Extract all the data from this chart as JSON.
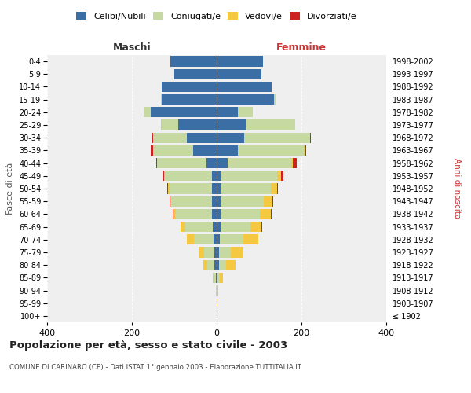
{
  "age_groups": [
    "100+",
    "95-99",
    "90-94",
    "85-89",
    "80-84",
    "75-79",
    "70-74",
    "65-69",
    "60-64",
    "55-59",
    "50-54",
    "45-49",
    "40-44",
    "35-39",
    "30-34",
    "25-29",
    "20-24",
    "15-19",
    "10-14",
    "5-9",
    "0-4"
  ],
  "birth_years": [
    "≤ 1902",
    "1903-1907",
    "1908-1912",
    "1913-1917",
    "1918-1922",
    "1923-1927",
    "1928-1932",
    "1933-1937",
    "1938-1942",
    "1943-1947",
    "1948-1952",
    "1953-1957",
    "1958-1962",
    "1963-1967",
    "1968-1972",
    "1973-1977",
    "1978-1982",
    "1983-1987",
    "1988-1992",
    "1993-1997",
    "1998-2002"
  ],
  "maschi": {
    "celibi": [
      0,
      0,
      0,
      2,
      5,
      5,
      8,
      10,
      12,
      12,
      12,
      12,
      25,
      55,
      70,
      90,
      155,
      130,
      130,
      100,
      110
    ],
    "coniugati": [
      0,
      0,
      1,
      5,
      18,
      25,
      45,
      65,
      85,
      95,
      100,
      110,
      115,
      95,
      80,
      40,
      15,
      2,
      0,
      0,
      0
    ],
    "vedovi": [
      0,
      0,
      1,
      3,
      8,
      12,
      18,
      10,
      5,
      2,
      2,
      2,
      0,
      0,
      0,
      2,
      2,
      0,
      0,
      0,
      0
    ],
    "divorziati": [
      0,
      0,
      0,
      0,
      0,
      0,
      0,
      0,
      2,
      2,
      2,
      2,
      2,
      5,
      2,
      0,
      0,
      0,
      0,
      0,
      0
    ]
  },
  "femmine": {
    "nubili": [
      0,
      0,
      0,
      2,
      5,
      5,
      8,
      10,
      12,
      12,
      12,
      12,
      25,
      50,
      65,
      70,
      50,
      135,
      130,
      105,
      110
    ],
    "coniugate": [
      0,
      0,
      1,
      5,
      18,
      28,
      55,
      70,
      90,
      100,
      115,
      130,
      150,
      155,
      155,
      115,
      35,
      5,
      0,
      0,
      0
    ],
    "vedove": [
      0,
      1,
      2,
      8,
      22,
      30,
      35,
      25,
      25,
      20,
      15,
      10,
      5,
      5,
      0,
      0,
      0,
      0,
      0,
      0,
      0
    ],
    "divorziate": [
      0,
      0,
      0,
      0,
      0,
      0,
      0,
      2,
      2,
      2,
      2,
      5,
      8,
      2,
      2,
      0,
      0,
      0,
      0,
      0,
      0
    ]
  },
  "colors": {
    "celibi": "#3a6ea5",
    "coniugati": "#c5d9a0",
    "vedovi": "#f5c842",
    "divorziati": "#cc2222"
  },
  "title": "Popolazione per età, sesso e stato civile - 2003",
  "subtitle": "COMUNE DI CARINARO (CE) - Dati ISTAT 1° gennaio 2003 - Elaborazione TUTTITALIA.IT",
  "xlabel_maschi": "Maschi",
  "xlabel_femmine": "Femmine",
  "ylabel_left": "Fasce di età",
  "ylabel_right": "Anni di nascita",
  "xlim": 400,
  "bg_color": "#ffffff",
  "plot_bg_color": "#efefef"
}
